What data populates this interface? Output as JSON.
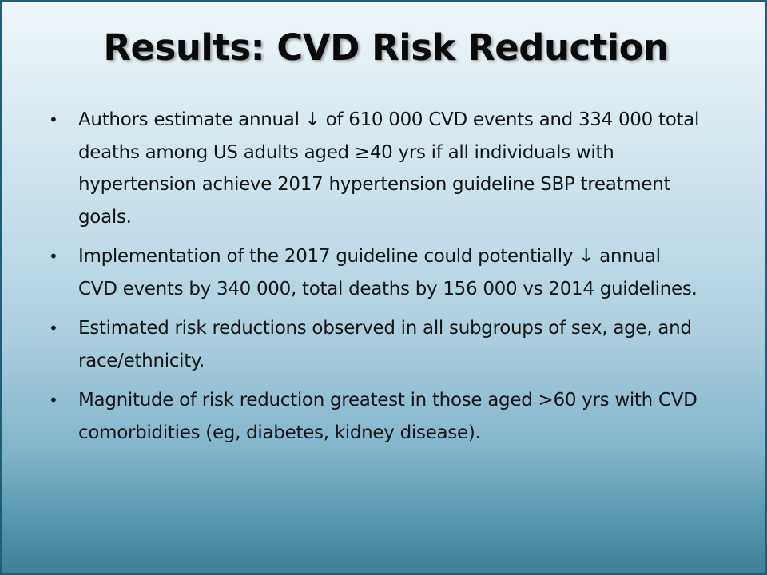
{
  "slide": {
    "title": "Results: CVD Risk Reduction",
    "bullet_symbol": "•",
    "bullets": [
      "Authors estimate annual ↓ of  610 000 CVD events and 334 000 total deaths among US adults aged ≥40 yrs if all individuals with hypertension achieve 2017 hypertension guideline SBP treatment goals.",
      "Implementation of the 2017 guideline could potentially ↓ annual CVD events by 340 000, total deaths by 156 000 vs 2014 guidelines.",
      "Estimated risk reductions observed in all subgroups of sex, age, and race/ethnicity.",
      "Magnitude of risk reduction greatest in those aged >60 yrs with CVD comorbidities (eg, diabetes, kidney disease)."
    ]
  }
}
